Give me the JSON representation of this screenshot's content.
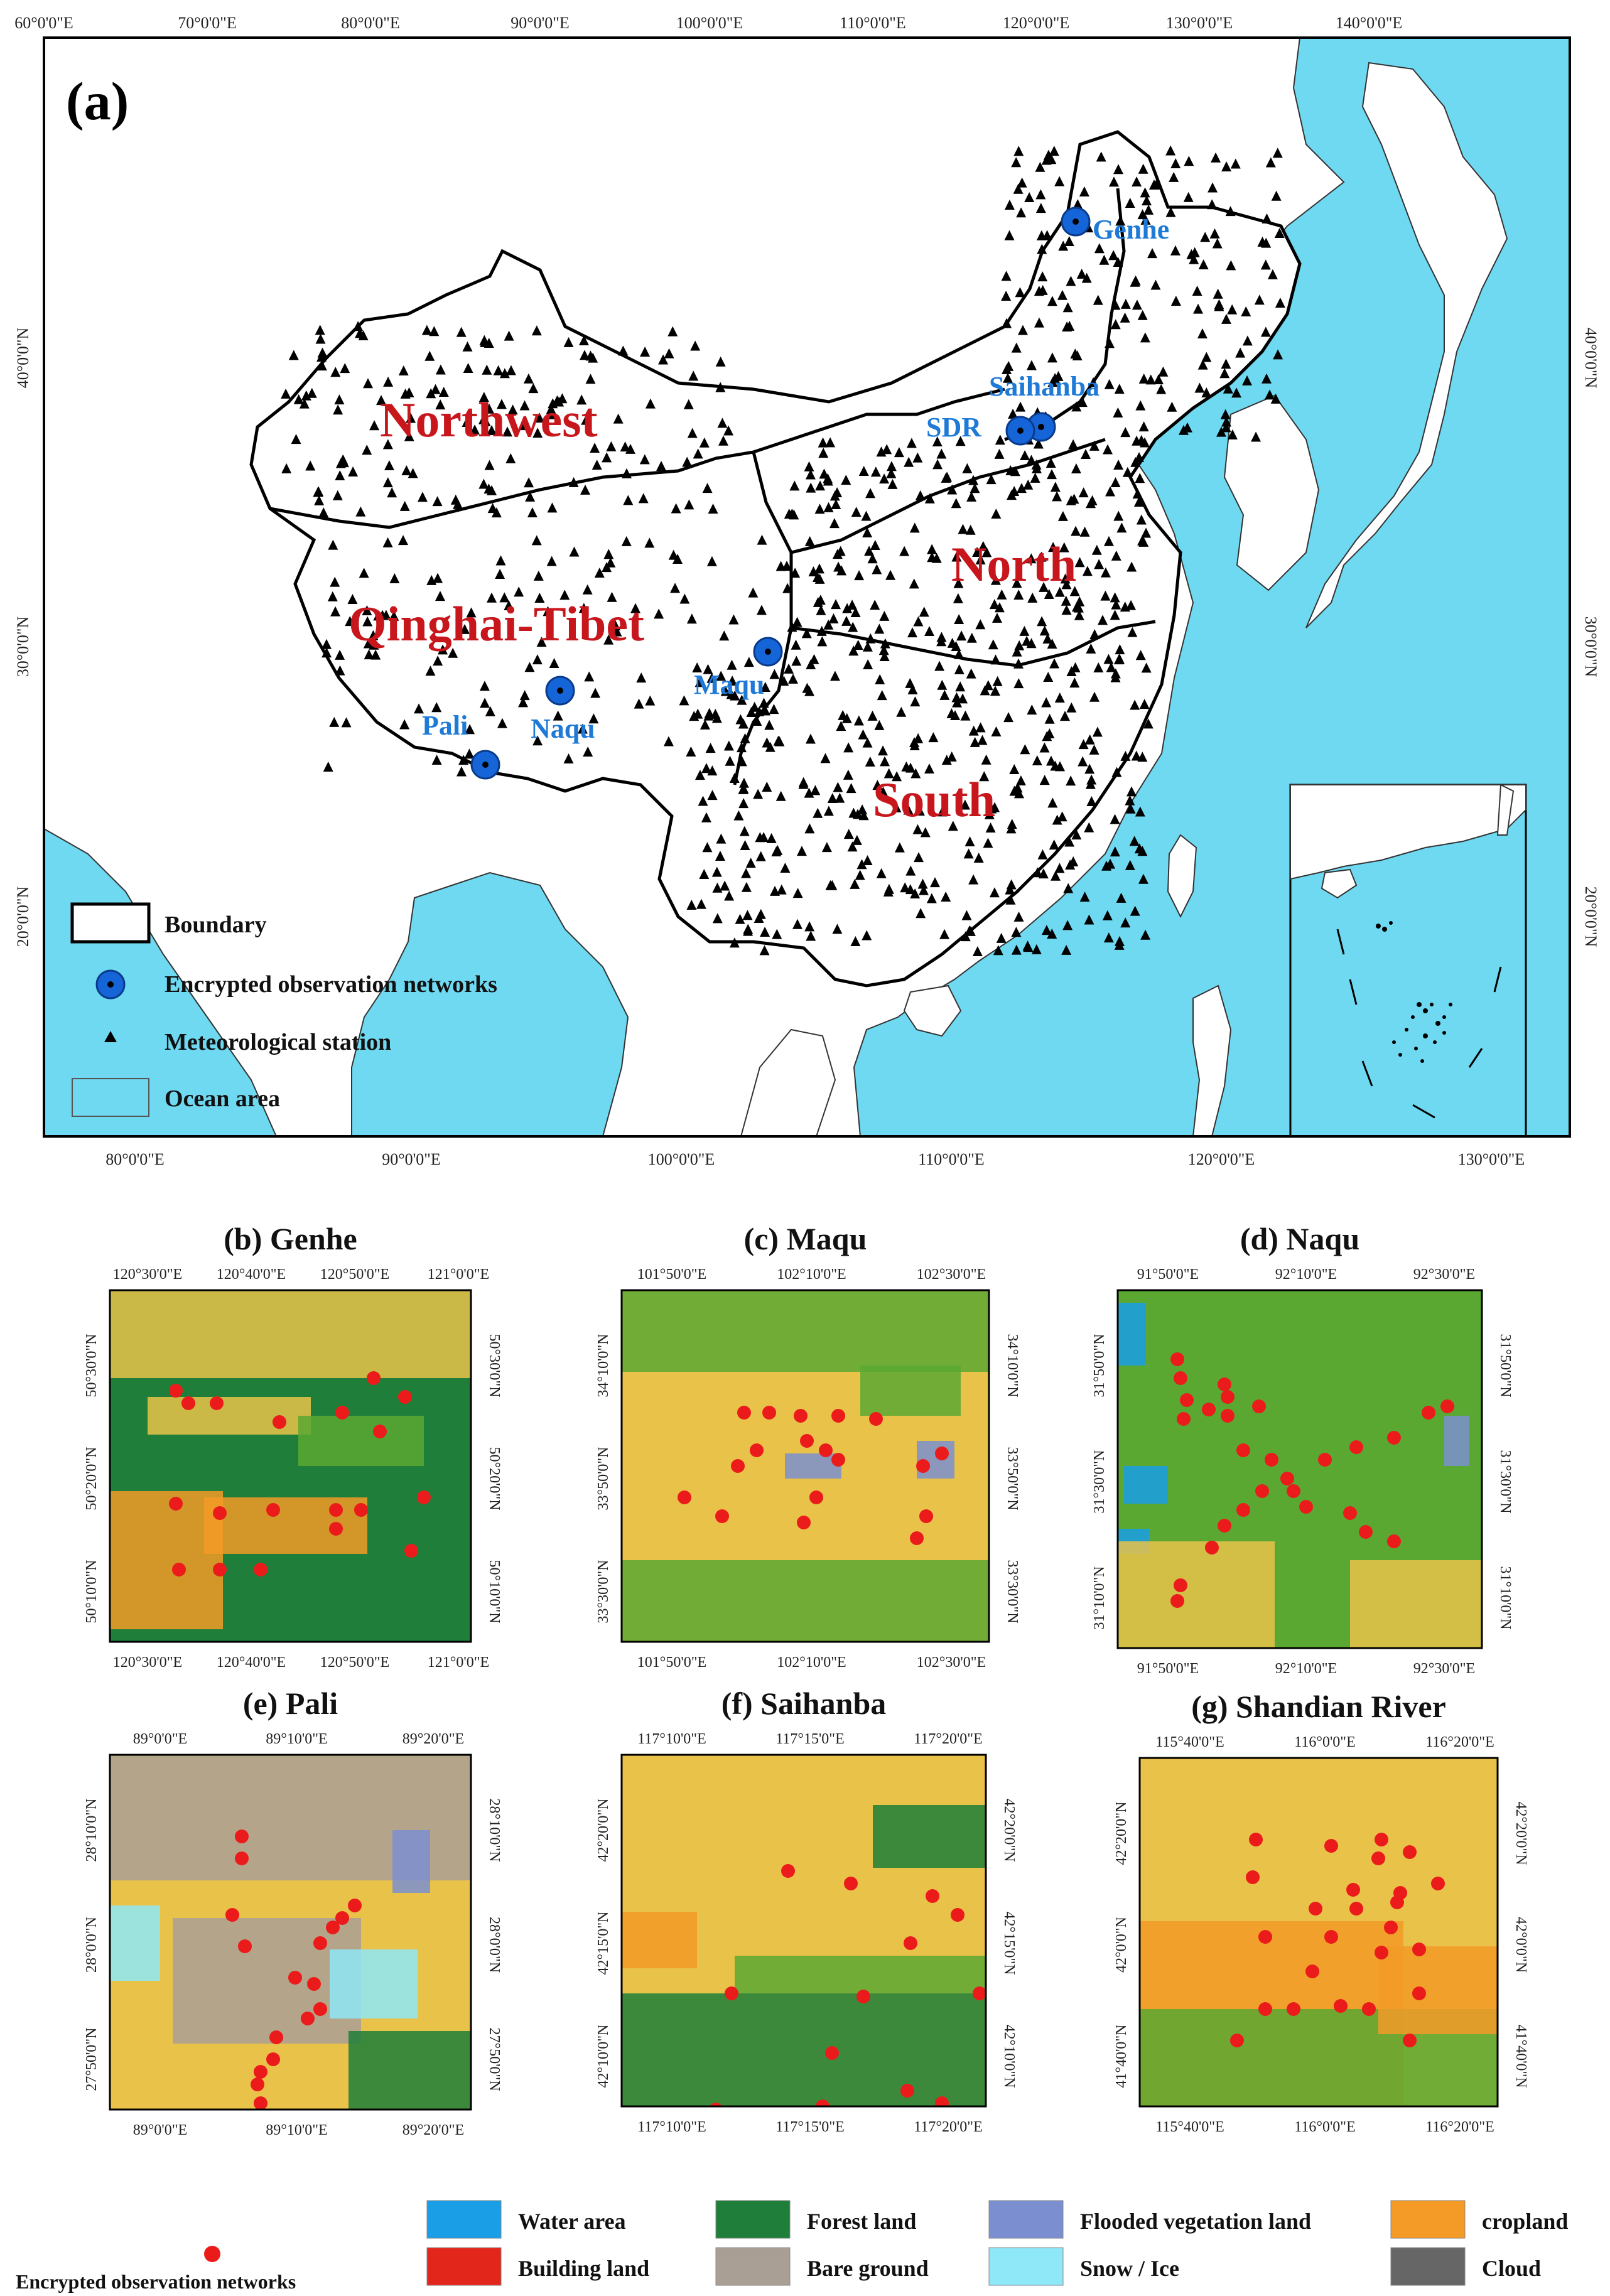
{
  "main_map": {
    "label": "(a)",
    "lon_ticks_top": [
      "60°0'0\"E",
      "70°0'0\"E",
      "80°0'0\"E",
      "90°0'0\"E",
      "100°0'0\"E",
      "110°0'0\"E",
      "120°0'0\"E",
      "130°0'0\"E",
      "140°0'0\"E"
    ],
    "lon_ticks_bottom": [
      "80°0'0\"E",
      "90°0'0\"E",
      "100°0'0\"E",
      "110°0'0\"E",
      "120°0'0\"E",
      "130°0'0\"E"
    ],
    "lat_ticks_left": [
      "40°0'0\"N",
      "30°0'0\"N",
      "20°0'0\"N"
    ],
    "lat_ticks_right": [
      "40°0'0\"N",
      "30°0'0\"N",
      "20°0'0\"N"
    ],
    "regions": [
      "Northwest",
      "Qinghai-Tibet",
      "North",
      "South"
    ],
    "sites": [
      "Genhe",
      "Saihanba",
      "SDR",
      "Maqu",
      "Naqu",
      "Pali"
    ],
    "legend": [
      {
        "label": "Boundary",
        "symbol": "rectangle-outline"
      },
      {
        "label": "Encrypted observation networks",
        "symbol": "blue-dot-circle"
      },
      {
        "label": "Meteorological station",
        "symbol": "black-triangle"
      },
      {
        "label": "Ocean area",
        "symbol": "cyan-rectangle"
      }
    ],
    "colors": {
      "ocean": "#6fd9f1",
      "land": "#ffffff",
      "region_label": "#c8161d",
      "site_label": "#1e7ad6",
      "site_marker": "#1565d8"
    }
  },
  "panels": [
    {
      "title": "(b)  Genhe",
      "top": [
        "120°30'0\"E",
        "120°40'0\"E",
        "120°50'0\"E",
        "121°0'0\"E"
      ],
      "bottom": [
        "120°30'0\"E",
        "120°40'0\"E",
        "120°50'0\"E",
        "121°0'0\"E"
      ],
      "left": [
        "50°30'0\"N",
        "50°20'0\"N",
        "50°10'0\"N"
      ],
      "right": [
        "50°30'0\"N",
        "50°20'0\"N",
        "50°10'0\"N"
      ]
    },
    {
      "title": "(c)  Maqu",
      "top": [
        "101°50'0\"E",
        "102°10'0\"E",
        "102°30'0\"E"
      ],
      "bottom": [
        "101°50'0\"E",
        "102°10'0\"E",
        "102°30'0\"E"
      ],
      "left": [
        "34°10'0\"N",
        "33°50'0\"N",
        "33°30'0\"N"
      ],
      "right": [
        "34°10'0\"N",
        "33°50'0\"N",
        "33°30'0\"N"
      ]
    },
    {
      "title": "(d)  Naqu",
      "top": [
        "91°50'0\"E",
        "92°10'0\"E",
        "92°30'0\"E"
      ],
      "bottom": [
        "91°50'0\"E",
        "92°10'0\"E",
        "92°30'0\"E"
      ],
      "left": [
        "31°50'0\"N",
        "31°30'0\"N",
        "31°10'0\"N"
      ],
      "right": [
        "31°50'0\"N",
        "31°30'0\"N",
        "31°10'0\"N"
      ]
    },
    {
      "title": "(e)  Pali",
      "top": [
        "89°0'0\"E",
        "89°10'0\"E",
        "89°20'0\"E"
      ],
      "bottom": [
        "89°0'0\"E",
        "89°10'0\"E",
        "89°20'0\"E"
      ],
      "left": [
        "28°10'0\"N",
        "28°0'0\"N",
        "27°50'0\"N"
      ],
      "right": [
        "28°10'0\"N",
        "28°0'0\"N",
        "27°50'0\"N"
      ]
    },
    {
      "title": "(f)  Saihanba",
      "top": [
        "117°10'0\"E",
        "117°15'0\"E",
        "117°20'0\"E"
      ],
      "bottom": [
        "117°10'0\"E",
        "117°15'0\"E",
        "117°20'0\"E"
      ],
      "left": [
        "42°20'0\"N",
        "42°15'0\"N",
        "42°10'0\"N"
      ],
      "right": [
        "42°20'0\"N",
        "42°15'0\"N",
        "42°10'0\"N"
      ]
    },
    {
      "title": "(g)  Shandian River",
      "top": [
        "115°40'0\"E",
        "116°0'0\"E",
        "116°20'0\"E"
      ],
      "bottom": [
        "115°40'0\"E",
        "116°0'0\"E",
        "116°20'0\"E"
      ],
      "left": [
        "42°20'0\"N",
        "42°0'0\"N",
        "41°40'0\"N"
      ],
      "right": [
        "42°20'0\"N",
        "42°0'0\"N",
        "41°40'0\"N"
      ]
    }
  ],
  "bottom_legend": {
    "dot_label": "Encrypted observation networks",
    "classes": [
      {
        "label": "Water area",
        "color": "#1a9ee6"
      },
      {
        "label": "Forest land",
        "color": "#1f7f3a"
      },
      {
        "label": "Flooded vegetation land",
        "color": "#7b8fd0"
      },
      {
        "label": "cropland",
        "color": "#f39a27"
      },
      {
        "label": "Building land",
        "color": "#e3261b"
      },
      {
        "label": "Bare ground",
        "color": "#aa9f94"
      },
      {
        "label": "Snow / Ice",
        "color": "#8ee8f7"
      },
      {
        "label": "Cloud",
        "color": "#666666"
      }
    ]
  }
}
